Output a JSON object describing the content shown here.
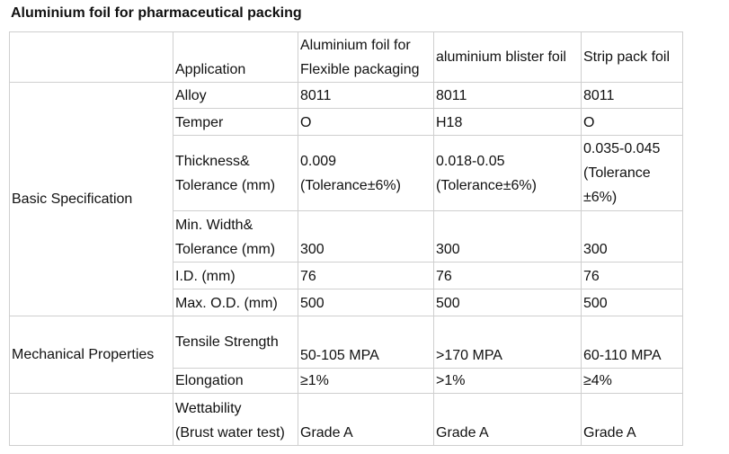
{
  "title": "Aluminium foil for pharmaceutical packing",
  "header": {
    "application": "Application",
    "col1": [
      "Aluminium foil for",
      "Flexible packaging"
    ],
    "col2": "aluminium blister foil",
    "col3": "Strip pack foil"
  },
  "groups": {
    "basic": "Basic Specification",
    "mechanical": "Mechanical Properties"
  },
  "rows": {
    "alloy": {
      "label": "Alloy",
      "v1": "8011",
      "v2": "8011",
      "v3": "8011"
    },
    "temper": {
      "label": "Temper",
      "v1": "O",
      "v2": "H18",
      "v3": "O"
    },
    "thickness": {
      "label": [
        "Thickness&",
        "Tolerance (mm)"
      ],
      "v1": [
        "0.009",
        "(Tolerance±6%)"
      ],
      "v2": [
        "0.018-0.05",
        "(Tolerance±6%)"
      ],
      "v3": [
        "0.035-0.045",
        "(Tolerance",
        "±6%)"
      ]
    },
    "width": {
      "label": [
        "Min. Width&",
        "Tolerance (mm)"
      ],
      "v1": "300",
      "v2": "300",
      "v3": "300"
    },
    "id": {
      "label": "I.D. (mm)",
      "v1": "76",
      "v2": "76",
      "v3": "76"
    },
    "od": {
      "label": "Max. O.D. (mm)",
      "v1": "500",
      "v2": "500",
      "v3": "500"
    },
    "tensile": {
      "label": "Tensile Strength",
      "v1": "50-105 MPA",
      "v2": ">170 MPA",
      "v3": "60-110 MPA"
    },
    "elongation": {
      "label": "Elongation",
      "v1": "≥1%",
      "v2": ">1%",
      "v3": "≥4%"
    },
    "wettability": {
      "label": [
        "Wettability",
        "(Brust water test)"
      ],
      "v1": "Grade A",
      "v2": "Grade A",
      "v3": "Grade A"
    }
  }
}
